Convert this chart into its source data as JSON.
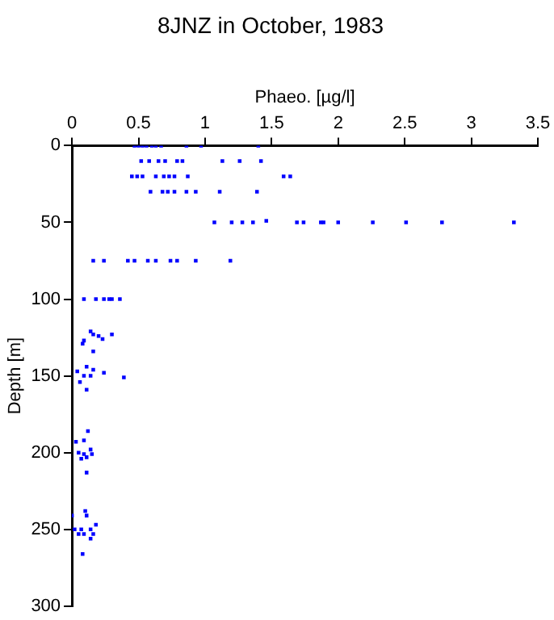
{
  "chart_data": {
    "type": "scatter",
    "title": "8JNZ in October, 1983",
    "xlabel": "Phaeo. [µg/l]",
    "ylabel": "Depth [m]",
    "marker": "square",
    "grid": false,
    "legend": false,
    "xlim": [
      0,
      3.5
    ],
    "xticks": [
      0,
      0.5,
      1,
      1.5,
      2,
      2.5,
      3,
      3.5
    ],
    "ylim": [
      300,
      0
    ],
    "yticks": [
      0,
      50,
      100,
      150,
      200,
      250,
      300
    ],
    "series": [
      {
        "color": "#0000ff",
        "x": [
          0.47,
          0.5,
          0.53,
          0.56,
          0.6,
          0.63,
          0.67,
          0.86,
          0.97,
          1.4,
          0.52,
          0.58,
          0.65,
          0.7,
          0.79,
          0.83,
          1.13,
          1.26,
          1.42,
          0.45,
          0.49,
          0.53,
          0.63,
          0.69,
          0.73,
          0.77,
          0.87,
          1.59,
          1.64,
          0.59,
          0.68,
          0.72,
          0.77,
          0.86,
          0.93,
          1.11,
          1.39,
          1.07,
          1.2,
          1.28,
          1.36,
          1.46,
          1.69,
          1.74,
          1.87,
          1.89,
          2.0,
          2.26,
          2.51,
          2.78,
          3.32,
          0.16,
          0.24,
          0.42,
          0.47,
          0.57,
          0.63,
          0.74,
          0.79,
          0.93,
          1.19,
          0.09,
          0.18,
          0.24,
          0.28,
          0.3,
          0.36,
          0.14,
          0.16,
          0.2,
          0.23,
          0.08,
          0.09,
          0.3,
          0.16,
          0.04,
          0.06,
          0.09,
          0.14,
          0.11,
          0.16,
          0.24,
          0.39,
          0.11,
          0.12,
          0.09,
          0.03,
          0.05,
          0.09,
          0.14,
          0.15,
          0.07,
          0.11,
          0.11,
          0.1,
          0.0,
          0.11,
          0.18,
          0.02,
          0.07,
          0.14,
          0.05,
          0.09,
          0.16,
          0.14,
          0.08
        ],
        "values": [
          0,
          0,
          0,
          0,
          0,
          0,
          0,
          0,
          0,
          0,
          10,
          10,
          10,
          10,
          10,
          10,
          10,
          10,
          10,
          20,
          20,
          20,
          20,
          20,
          20,
          20,
          20,
          20,
          20,
          30,
          30,
          30,
          30,
          30,
          30,
          30,
          30,
          50,
          50,
          50,
          50,
          49,
          50,
          50,
          50,
          50,
          50,
          50,
          50,
          50,
          50,
          75,
          75,
          75,
          75,
          75,
          75,
          75,
          75,
          75,
          75,
          100,
          100,
          100,
          100,
          100,
          100,
          121,
          123,
          124,
          126,
          129,
          127,
          123,
          134,
          147,
          154,
          150,
          150,
          144,
          146,
          148,
          151,
          159,
          186,
          192,
          193,
          200,
          201,
          198,
          201,
          204,
          203,
          213,
          238,
          241,
          241,
          247,
          250,
          250,
          250,
          253,
          253,
          253,
          256,
          266
        ]
      }
    ]
  }
}
